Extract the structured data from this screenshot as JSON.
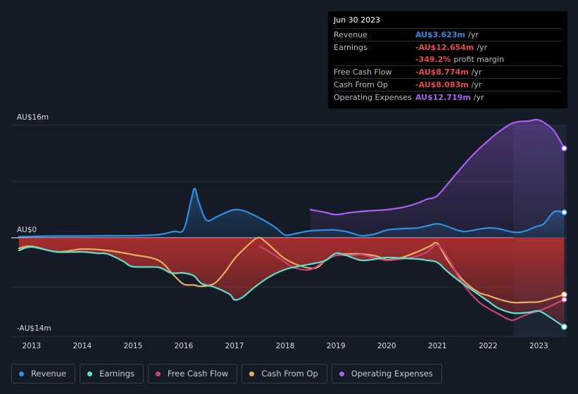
{
  "tooltip": {
    "date": "Jun 30 2023",
    "rows": [
      {
        "label": "Revenue",
        "value": "AU$3.623m",
        "unit": "/yr",
        "color": "#2f8fe4"
      },
      {
        "label": "Earnings",
        "value": "-AU$12.654m",
        "unit": "/yr",
        "color": "#e94b4b"
      },
      {
        "label": "",
        "value": "-349.2%",
        "unit": "profit margin",
        "color": "#e94b4b"
      },
      {
        "label": "Free Cash Flow",
        "value": "-AU$8.774m",
        "unit": "/yr",
        "color": "#e94b4b"
      },
      {
        "label": "Cash From Op",
        "value": "-AU$8.083m",
        "unit": "/yr",
        "color": "#e94b4b"
      },
      {
        "label": "Operating Expenses",
        "value": "AU$12.719m",
        "unit": "/yr",
        "color": "#a95ff0"
      }
    ]
  },
  "legend": [
    {
      "label": "Revenue",
      "color": "#2f8fe4"
    },
    {
      "label": "Earnings",
      "color": "#5fe0c8"
    },
    {
      "label": "Free Cash Flow",
      "color": "#c9447a"
    },
    {
      "label": "Cash From Op",
      "color": "#e8ad63"
    },
    {
      "label": "Operating Expenses",
      "color": "#a95ff0"
    }
  ],
  "colors": {
    "revenue": "#2f8fe4",
    "earnings": "#5fe0c8",
    "fcf": "#c9447a",
    "cfo": "#e8ad63",
    "opex": "#a95ff0",
    "grid": "#2c323d",
    "zero": "#ffffff"
  },
  "chart_data": {
    "type": "line",
    "title": "",
    "xlabel": "",
    "ylabel": "",
    "ylim": [
      -14,
      16
    ],
    "xlim": [
      2012.6,
      2023.55
    ],
    "y_tick_labels": [
      {
        "value": 16,
        "label": "AU$16m"
      },
      {
        "value": 0,
        "label": "AU$0"
      },
      {
        "value": -14,
        "label": "-AU$14m"
      }
    ],
    "x_ticks": [
      2013,
      2014,
      2015,
      2016,
      2017,
      2018,
      2019,
      2020,
      2021,
      2022,
      2023
    ],
    "x_tick_labels": [
      "2013",
      "2014",
      "2015",
      "2016",
      "2017",
      "2018",
      "2019",
      "2020",
      "2021",
      "2022",
      "2023"
    ],
    "highlight_start": 2022.5,
    "series": [
      {
        "name": "Revenue",
        "key": "revenue",
        "fill": true,
        "x": [
          2012.75,
          2013.0,
          2013.5,
          2014.0,
          2014.5,
          2015.0,
          2015.5,
          2015.8,
          2016.0,
          2016.15,
          2016.22,
          2016.3,
          2016.45,
          2016.65,
          2016.8,
          2017.0,
          2017.2,
          2017.5,
          2017.8,
          2018.0,
          2018.2,
          2018.5,
          2018.8,
          2019.0,
          2019.25,
          2019.5,
          2019.75,
          2020.0,
          2020.3,
          2020.6,
          2020.8,
          2021.0,
          2021.2,
          2021.5,
          2021.8,
          2022.0,
          2022.2,
          2022.5,
          2022.7,
          2022.95,
          2023.1,
          2023.3,
          2023.5
        ],
        "values": [
          0.15,
          0.2,
          0.25,
          0.25,
          0.3,
          0.3,
          0.45,
          0.9,
          1.2,
          5.5,
          7.0,
          5.0,
          2.5,
          3.0,
          3.5,
          4.0,
          3.8,
          2.8,
          1.5,
          0.4,
          0.6,
          1.0,
          1.1,
          1.1,
          0.8,
          0.3,
          0.5,
          1.1,
          1.3,
          1.4,
          1.7,
          2.0,
          1.6,
          0.9,
          1.2,
          1.4,
          1.3,
          0.8,
          0.9,
          1.6,
          2.0,
          3.7,
          3.62
        ]
      },
      {
        "name": "Earnings",
        "key": "earnings",
        "fill": false,
        "x": [
          2012.75,
          2013.0,
          2013.5,
          2014.0,
          2014.3,
          2014.5,
          2014.8,
          2015.0,
          2015.5,
          2015.75,
          2016.0,
          2016.2,
          2016.35,
          2016.6,
          2016.9,
          2017.0,
          2017.15,
          2017.4,
          2017.7,
          2018.0,
          2018.3,
          2018.6,
          2018.8,
          2019.0,
          2019.2,
          2019.5,
          2019.8,
          2020.0,
          2020.3,
          2020.6,
          2020.8,
          2021.0,
          2021.2,
          2021.5,
          2021.8,
          2022.0,
          2022.2,
          2022.5,
          2022.8,
          2023.0,
          2023.2,
          2023.5
        ],
        "values": [
          -1.8,
          -1.3,
          -2.0,
          -2.0,
          -2.2,
          -2.3,
          -3.3,
          -4.1,
          -4.2,
          -5.0,
          -5.0,
          -5.4,
          -6.5,
          -7.0,
          -8.0,
          -8.8,
          -8.5,
          -7.0,
          -5.5,
          -4.5,
          -4.0,
          -3.6,
          -3.2,
          -2.2,
          -2.5,
          -3.2,
          -3.0,
          -2.8,
          -2.9,
          -3.0,
          -3.2,
          -3.5,
          -4.8,
          -6.5,
          -8.0,
          -9.0,
          -10.0,
          -10.7,
          -10.6,
          -10.4,
          -11.2,
          -12.65
        ]
      },
      {
        "name": "Free Cash Flow",
        "key": "fcf",
        "fill": false,
        "x": [
          2017.5,
          2017.8,
          2018.0,
          2018.2,
          2018.5,
          2018.8,
          2019.0,
          2019.3,
          2019.5,
          2019.8,
          2020.0,
          2020.3,
          2020.6,
          2020.8,
          2021.0,
          2021.2,
          2021.5,
          2021.8,
          2022.0,
          2022.2,
          2022.45,
          2022.6,
          2022.8,
          2023.0,
          2023.2,
          2023.5
        ],
        "values": [
          -1.2,
          -2.5,
          -3.5,
          -4.3,
          -4.5,
          -3.2,
          -2.5,
          -2.5,
          -2.4,
          -2.9,
          -3.2,
          -3.0,
          -2.6,
          -2.0,
          -1.0,
          -2.8,
          -6.5,
          -9.0,
          -10.0,
          -10.8,
          -11.7,
          -11.4,
          -10.8,
          -10.4,
          -9.8,
          -8.77
        ]
      },
      {
        "name": "Cash From Op",
        "key": "cfo",
        "fill": false,
        "x": [
          2012.75,
          2013.0,
          2013.5,
          2014.0,
          2014.5,
          2015.0,
          2015.5,
          2015.8,
          2016.0,
          2016.2,
          2016.35,
          2016.6,
          2016.8,
          2017.0,
          2017.2,
          2017.45,
          2017.6,
          2017.8,
          2018.0,
          2018.3,
          2018.6,
          2018.8,
          2019.0,
          2019.2,
          2019.5,
          2019.8,
          2020.0,
          2020.3,
          2020.6,
          2020.85,
          2021.0,
          2021.2,
          2021.5,
          2021.8,
          2022.0,
          2022.25,
          2022.5,
          2022.8,
          2023.0,
          2023.2,
          2023.5
        ],
        "values": [
          -1.5,
          -1.2,
          -2.0,
          -1.6,
          -1.8,
          -2.4,
          -3.2,
          -5.3,
          -6.6,
          -6.7,
          -6.9,
          -6.5,
          -5.0,
          -3.0,
          -1.5,
          0.0,
          -0.5,
          -1.8,
          -3.0,
          -4.0,
          -4.3,
          -3.2,
          -2.5,
          -2.3,
          -2.3,
          -2.6,
          -3.1,
          -2.8,
          -2.0,
          -1.2,
          -0.8,
          -3.2,
          -6.0,
          -7.7,
          -8.2,
          -8.8,
          -9.2,
          -9.15,
          -9.1,
          -8.7,
          -8.08
        ]
      },
      {
        "name": "Operating Expenses",
        "key": "opex",
        "fill": true,
        "x": [
          2018.5,
          2018.8,
          2019.0,
          2019.3,
          2019.6,
          2019.8,
          2020.0,
          2020.3,
          2020.6,
          2020.8,
          2021.0,
          2021.3,
          2021.6,
          2021.8,
          2022.0,
          2022.2,
          2022.45,
          2022.6,
          2022.8,
          2022.95,
          2023.1,
          2023.3,
          2023.5
        ],
        "values": [
          4.0,
          3.6,
          3.3,
          3.6,
          3.8,
          3.9,
          4.0,
          4.3,
          4.9,
          5.5,
          6.0,
          8.5,
          11.0,
          12.5,
          13.8,
          15.0,
          16.2,
          16.5,
          16.6,
          16.8,
          16.4,
          15.2,
          12.72
        ]
      }
    ]
  }
}
